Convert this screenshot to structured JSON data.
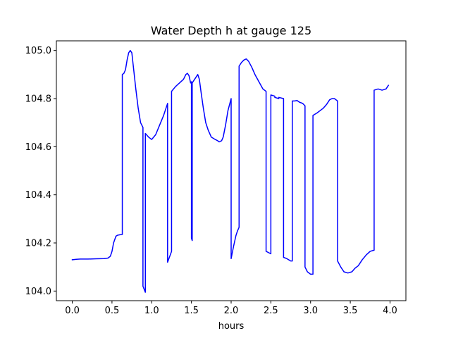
{
  "chart_data": {
    "type": "line",
    "title": "Water Depth h at gauge 125",
    "xlabel": "hours",
    "ylabel": "",
    "xlim": [
      -0.2,
      4.2
    ],
    "ylim": [
      103.96,
      105.04
    ],
    "xticks": [
      0.0,
      0.5,
      1.0,
      1.5,
      2.0,
      2.5,
      3.0,
      3.5,
      4.0
    ],
    "xtick_labels": [
      "0.0",
      "0.5",
      "1.0",
      "1.5",
      "2.0",
      "2.5",
      "3.0",
      "3.5",
      "4.0"
    ],
    "yticks": [
      104.0,
      104.2,
      104.4,
      104.6,
      104.8,
      105.0
    ],
    "ytick_labels": [
      "104.0",
      "104.2",
      "104.4",
      "104.6",
      "104.8",
      "105.0"
    ],
    "grid": false,
    "legend": false,
    "series": [
      {
        "color": "#0000ff",
        "x": [
          0.0,
          0.05,
          0.1,
          0.2,
          0.3,
          0.4,
          0.45,
          0.48,
          0.5,
          0.52,
          0.55,
          0.57,
          0.6,
          0.63,
          0.63,
          0.65,
          0.67,
          0.69,
          0.71,
          0.73,
          0.75,
          0.77,
          0.8,
          0.83,
          0.86,
          0.89,
          0.89,
          0.92,
          0.92,
          0.96,
          1.0,
          1.05,
          1.1,
          1.15,
          1.2,
          1.2,
          1.25,
          1.25,
          1.3,
          1.35,
          1.4,
          1.43,
          1.45,
          1.47,
          1.49,
          1.5,
          1.5,
          1.51,
          1.51,
          1.52,
          1.55,
          1.58,
          1.6,
          1.62,
          1.65,
          1.68,
          1.71,
          1.75,
          1.8,
          1.83,
          1.85,
          1.88,
          1.9,
          1.93,
          1.96,
          2.0,
          2.0,
          2.03,
          2.06,
          2.08,
          2.1,
          2.1,
          2.13,
          2.16,
          2.19,
          2.22,
          2.26,
          2.3,
          2.35,
          2.4,
          2.44,
          2.44,
          2.5,
          2.5,
          2.55,
          2.55,
          2.6,
          2.6,
          2.66,
          2.66,
          2.7,
          2.75,
          2.77,
          2.77,
          2.8,
          2.83,
          2.86,
          2.9,
          2.93,
          2.93,
          2.96,
          3.0,
          3.03,
          3.03,
          3.08,
          3.12,
          3.16,
          3.2,
          3.24,
          3.27,
          3.3,
          3.34,
          3.34,
          3.38,
          3.42,
          3.47,
          3.52,
          3.56,
          3.6,
          3.65,
          3.7,
          3.75,
          3.8,
          3.8,
          3.85,
          3.9,
          3.95,
          3.98
        ],
        "y": [
          104.13,
          104.132,
          104.133,
          104.133,
          104.134,
          104.135,
          104.137,
          104.145,
          104.165,
          104.2,
          104.228,
          104.232,
          104.234,
          104.235,
          104.9,
          104.905,
          104.92,
          104.96,
          104.99,
          105.0,
          104.99,
          104.93,
          104.84,
          104.76,
          104.7,
          104.68,
          104.02,
          103.995,
          104.655,
          104.64,
          104.63,
          104.65,
          104.69,
          104.73,
          104.78,
          104.12,
          104.165,
          104.83,
          104.85,
          104.865,
          104.88,
          104.9,
          104.905,
          104.895,
          104.865,
          104.87,
          104.22,
          104.21,
          104.865,
          104.87,
          104.885,
          104.9,
          104.88,
          104.83,
          104.76,
          104.7,
          104.67,
          104.64,
          104.63,
          104.625,
          104.62,
          104.625,
          104.64,
          104.69,
          104.75,
          104.8,
          104.135,
          104.185,
          104.23,
          104.25,
          104.265,
          104.935,
          104.95,
          104.96,
          104.965,
          104.955,
          104.93,
          104.9,
          104.87,
          104.84,
          104.83,
          104.165,
          104.155,
          104.815,
          104.81,
          104.805,
          104.8,
          104.805,
          104.8,
          104.14,
          104.135,
          104.125,
          104.125,
          104.79,
          104.79,
          104.792,
          104.785,
          104.78,
          104.77,
          104.1,
          104.08,
          104.07,
          104.07,
          104.73,
          104.74,
          104.75,
          104.76,
          104.775,
          104.795,
          104.8,
          104.8,
          104.79,
          104.125,
          104.1,
          104.08,
          104.075,
          104.08,
          104.095,
          104.105,
          104.13,
          104.15,
          104.165,
          104.17,
          104.835,
          104.84,
          104.835,
          104.84,
          104.855
        ]
      }
    ]
  }
}
